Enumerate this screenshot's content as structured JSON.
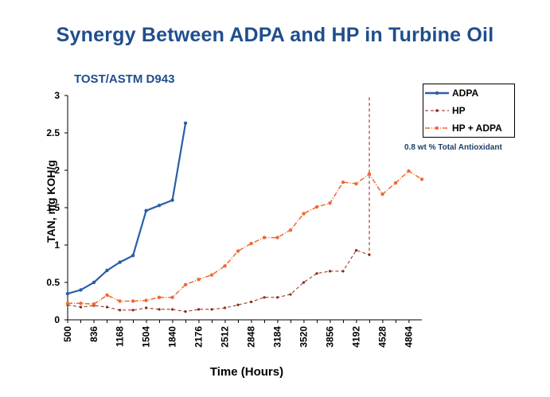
{
  "title": "Synergy Between ADPA and HP in Turbine Oil",
  "subtitle": "TOST/ASTM D943",
  "annotation": "0.8 wt % Total Antioxidant",
  "chart_data": {
    "type": "line",
    "xlabel": "Time  (Hours)",
    "ylabel": "TAN, mg KOH/g",
    "xlim": [
      500,
      5032
    ],
    "ylim": [
      0,
      3
    ],
    "x_ticks": [
      500,
      836,
      1168,
      1504,
      1840,
      2176,
      2512,
      2848,
      3184,
      3520,
      3856,
      4192,
      4528,
      4864
    ],
    "y_ticks": [
      0,
      0.5,
      1,
      1.5,
      2,
      2.5,
      3
    ],
    "y_tick_labels": [
      "0",
      "0.5",
      "1",
      "1.5",
      "2",
      "2.5",
      "3"
    ],
    "grid": false,
    "legend_position": "top-right",
    "series": [
      {
        "name": "ADPA",
        "color": "#2b5ea7",
        "style": "solid",
        "x": [
          500,
          668,
          836,
          1004,
          1168,
          1336,
          1504,
          1672,
          1840,
          2008
        ],
        "y": [
          0.35,
          0.4,
          0.5,
          0.66,
          0.77,
          0.86,
          1.46,
          1.53,
          1.6,
          2.63
        ]
      },
      {
        "name": "HP",
        "color": "#8b2a10",
        "style": "dashed",
        "x": [
          500,
          668,
          836,
          1004,
          1168,
          1336,
          1504,
          1672,
          1840,
          2008,
          2176,
          2344,
          2512,
          2680,
          2848,
          3016,
          3184,
          3352,
          3520,
          3688,
          3856,
          4024,
          4192,
          4360,
          4360
        ],
        "y": [
          0.2,
          0.17,
          0.19,
          0.17,
          0.13,
          0.13,
          0.16,
          0.14,
          0.14,
          0.11,
          0.14,
          0.14,
          0.16,
          0.2,
          0.24,
          0.3,
          0.3,
          0.34,
          0.5,
          0.62,
          0.65,
          0.65,
          0.93,
          0.87,
          3.0
        ]
      },
      {
        "name": "HP + ADPA",
        "color": "#ee6a32",
        "style": "dash-dot",
        "x": [
          500,
          668,
          836,
          1004,
          1168,
          1336,
          1504,
          1672,
          1840,
          2008,
          2176,
          2344,
          2512,
          2680,
          2848,
          3016,
          3184,
          3352,
          3520,
          3688,
          3856,
          4024,
          4192,
          4360,
          4528,
          4696,
          4864,
          5032
        ],
        "y": [
          0.22,
          0.22,
          0.21,
          0.33,
          0.25,
          0.25,
          0.26,
          0.3,
          0.3,
          0.47,
          0.54,
          0.6,
          0.72,
          0.92,
          1.02,
          1.1,
          1.1,
          1.2,
          1.42,
          1.51,
          1.56,
          1.84,
          1.82,
          1.95,
          1.68,
          1.83,
          1.99,
          1.88
        ]
      }
    ]
  }
}
